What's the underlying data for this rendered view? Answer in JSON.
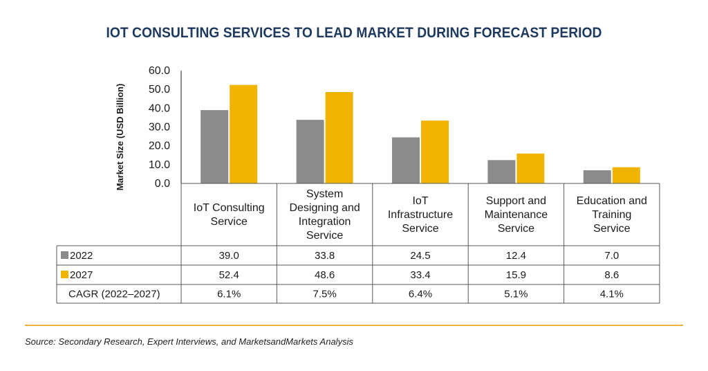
{
  "chart_data": {
    "type": "bar",
    "title": "IOT CONSULTING SERVICES TO LEAD MARKET DURING FORECAST PERIOD",
    "xlabel": "",
    "ylabel": "Market Size (USD Billion)",
    "ylim": [
      0,
      60
    ],
    "yticks": [
      "60.0",
      "50.0",
      "40.0",
      "30.0",
      "20.0",
      "10.0",
      "0.0"
    ],
    "categories": [
      [
        "IoT Consulting",
        "Service"
      ],
      [
        "System",
        "Designing and",
        "Integration",
        "Service"
      ],
      [
        "IoT",
        "Infrastructure",
        "Service"
      ],
      [
        "Support and",
        "Maintenance",
        "Service"
      ],
      [
        "Education and",
        "Training",
        "Service"
      ]
    ],
    "series": [
      {
        "name": "2022",
        "values": [
          39.0,
          33.8,
          24.5,
          12.4,
          7.0
        ],
        "labels": [
          "39.0",
          "33.8",
          "24.5",
          "12.4",
          "7.0"
        ],
        "color": "#8c8a8d"
      },
      {
        "name": "2027",
        "values": [
          52.4,
          48.6,
          33.4,
          15.9,
          8.6
        ],
        "labels": [
          "52.4",
          "48.6",
          "33.4",
          "15.9",
          "8.6"
        ],
        "color": "#f0b400"
      }
    ],
    "cagr": {
      "label": "CAGR (2022–2027)",
      "values": [
        "6.1%",
        "7.5%",
        "6.4%",
        "5.1%",
        "4.1%"
      ]
    },
    "grid": false,
    "legend": "table-rows"
  },
  "source": "Source: Secondary Research, Expert Interviews, and MarketsandMarkets Analysis"
}
